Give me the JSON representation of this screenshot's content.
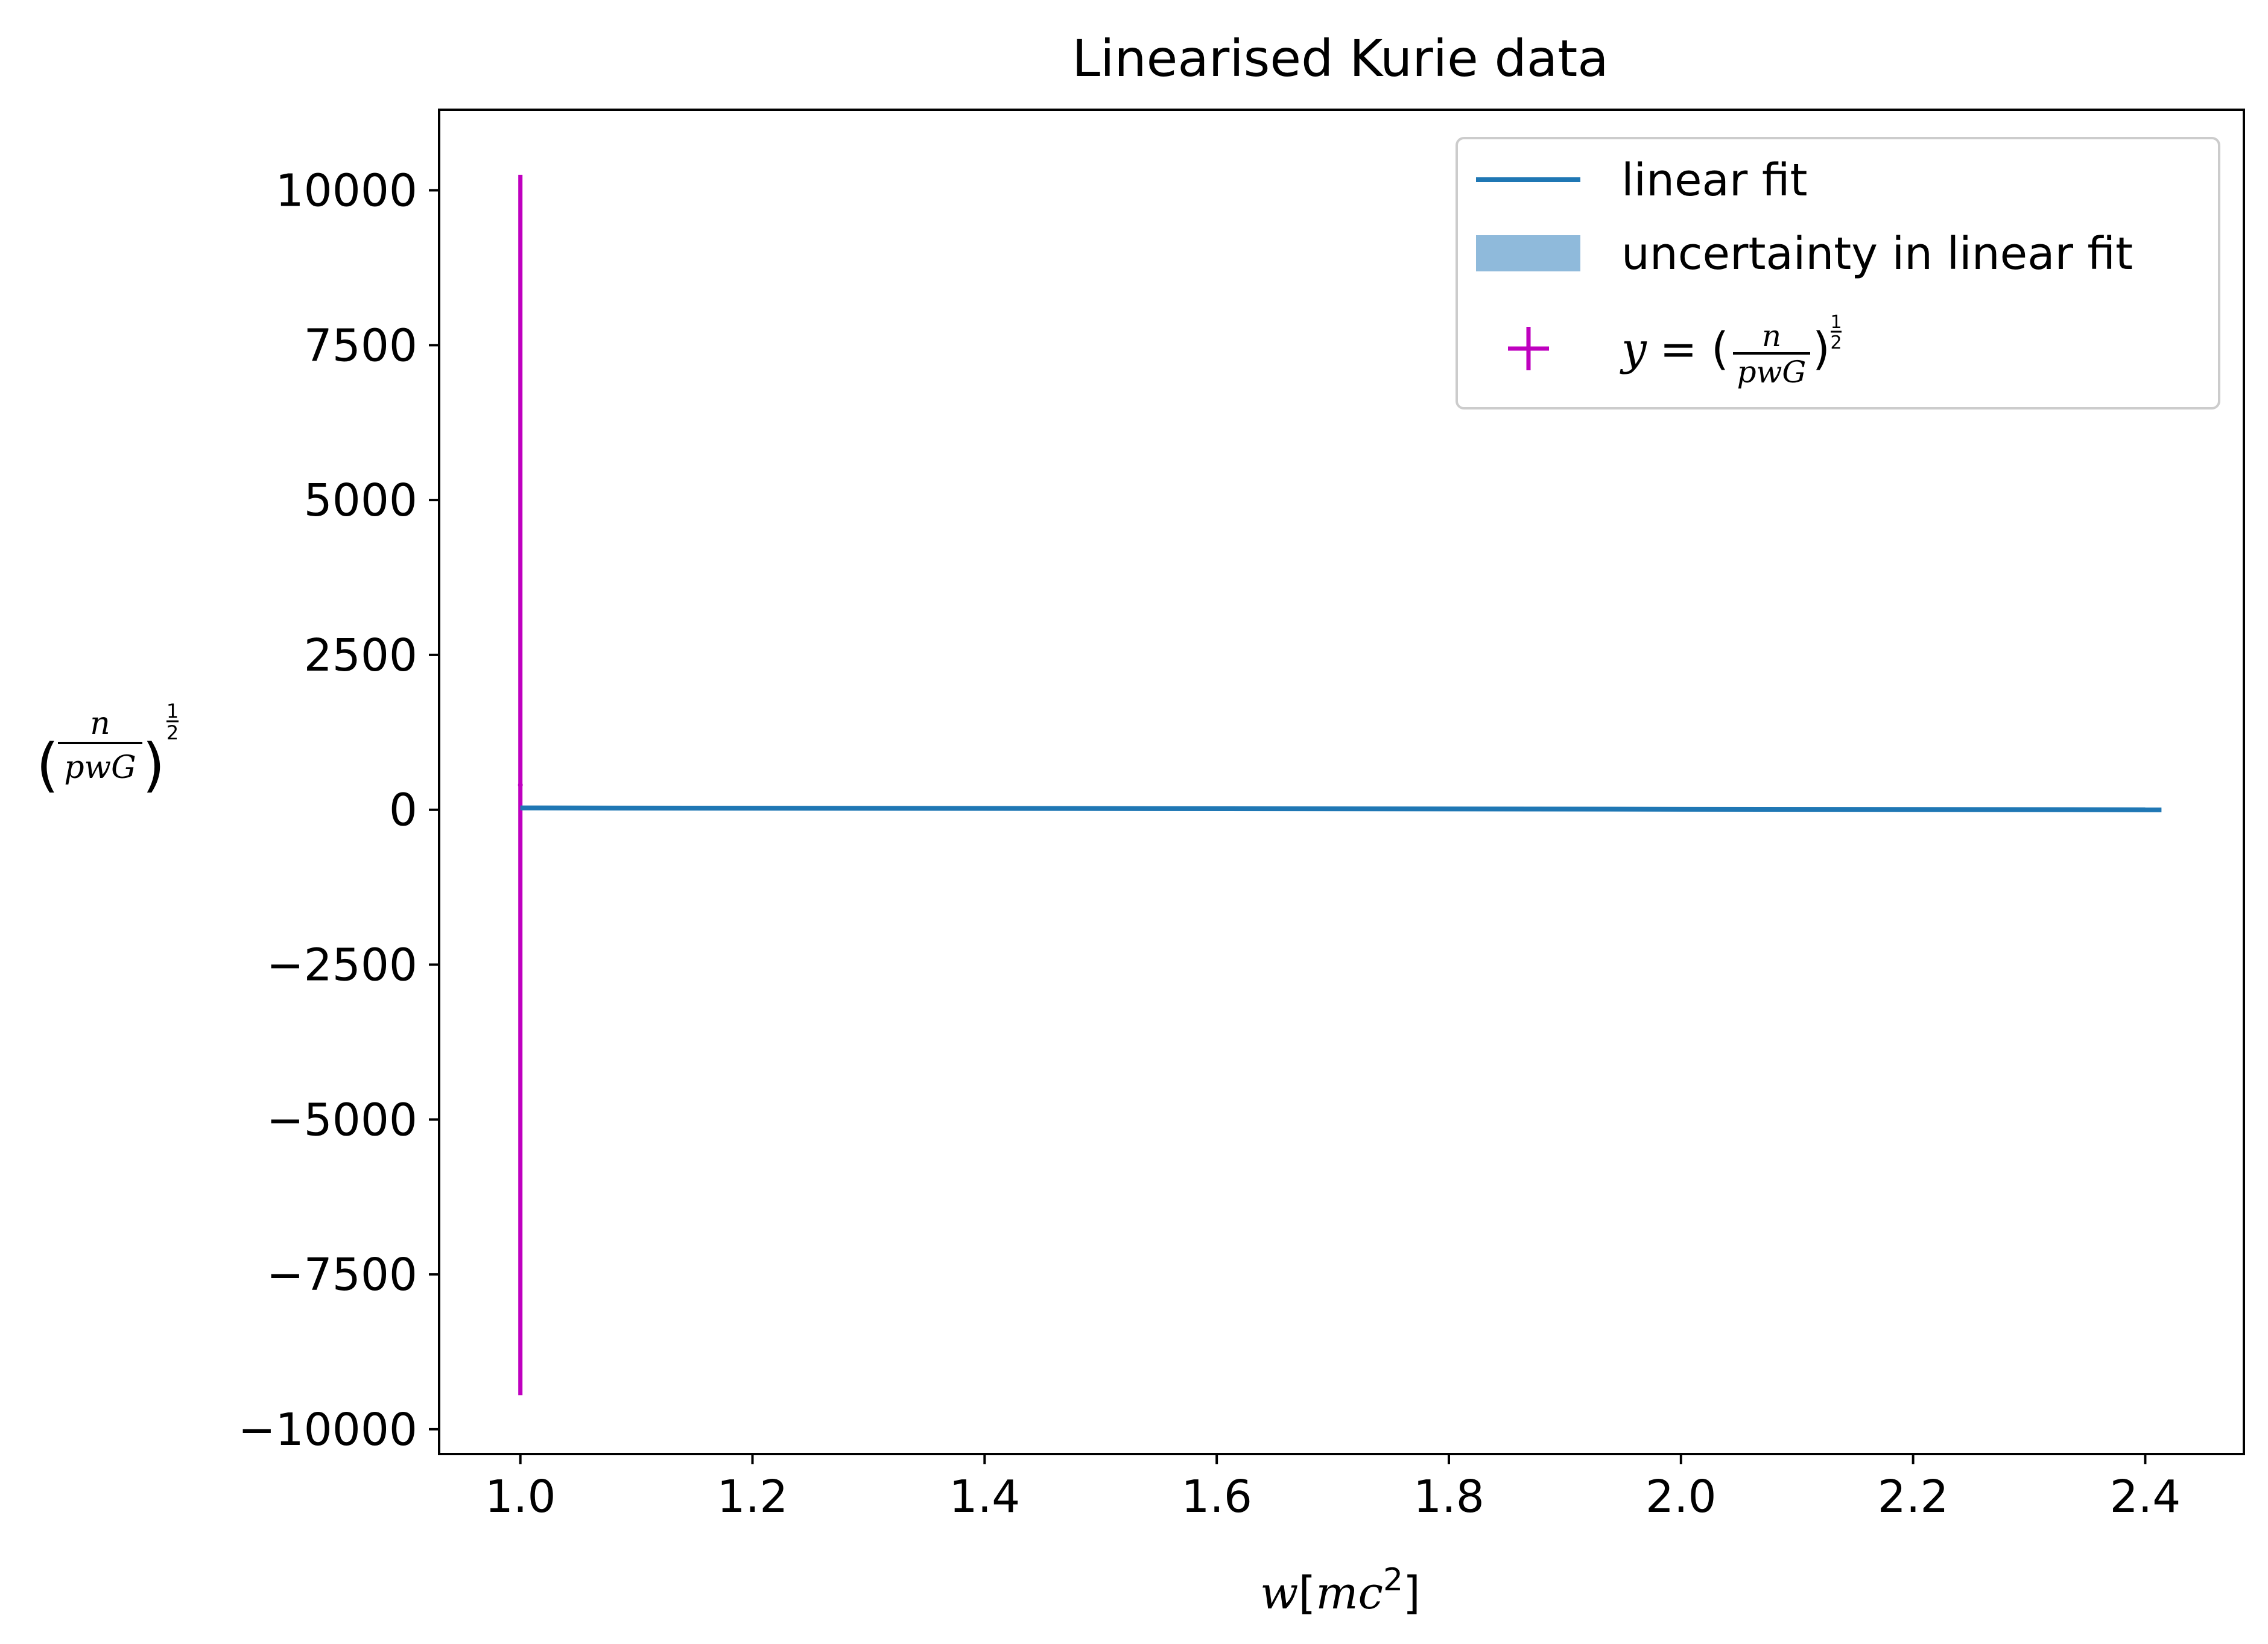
{
  "chart_data": {
    "type": "line",
    "title": "Linearised Kurie data",
    "xlabel": {
      "var": "w",
      "bracket_open": "[",
      "unit": "mc",
      "power": "2",
      "bracket_close": "]"
    },
    "ylabel": {
      "numerator": "n",
      "denominator": "pwG",
      "exponent_num": "1",
      "exponent_den": "2"
    },
    "xlim": [
      0.93,
      2.485
    ],
    "ylim": [
      -10400,
      11300
    ],
    "xticks": [
      1.0,
      1.2,
      1.4,
      1.6,
      1.8,
      2.0,
      2.2,
      2.4
    ],
    "xtick_labels": [
      "1.0",
      "1.2",
      "1.4",
      "1.6",
      "1.8",
      "2.0",
      "2.2",
      "2.4"
    ],
    "yticks": [
      10000,
      7500,
      5000,
      2500,
      0,
      -2500,
      -5000,
      -7500,
      -10000
    ],
    "ytick_labels": [
      "10000",
      "7500",
      "5000",
      "2500",
      "0",
      "−2500",
      "−5000",
      "−7500",
      "−10000"
    ],
    "grid": false,
    "legend_position": "top-right",
    "series": [
      {
        "name": "linear fit",
        "kind": "line",
        "color": "#1f77b4",
        "x": [
          1.0,
          2.414
        ],
        "y": [
          30,
          0
        ]
      },
      {
        "name": "uncertainty in linear fit",
        "kind": "band",
        "color": "#8fbadb",
        "x": [
          1.0,
          2.414
        ],
        "y_low": [
          22,
          -8
        ],
        "y_high": [
          38,
          8
        ]
      },
      {
        "name_parts": {
          "var": "y",
          "eq": " = (",
          "numerator": "n",
          "denominator": "pwG",
          "close": ")",
          "exponent_num": "1",
          "exponent_den": "2"
        },
        "kind": "errorbar",
        "color": "#bf00bf",
        "x": [
          1.0
        ],
        "y": [
          400
        ],
        "yerr_low": [
          -9450
        ],
        "yerr_high": [
          10250
        ]
      }
    ]
  }
}
